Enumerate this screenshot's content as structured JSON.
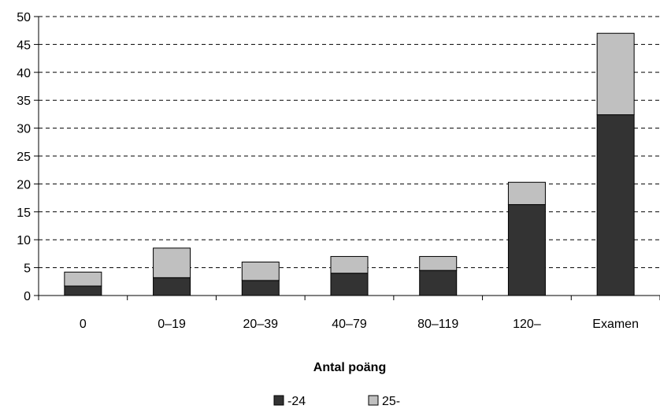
{
  "chart_data": {
    "type": "bar",
    "stacked": true,
    "title": "",
    "xlabel": "Antal poäng",
    "ylabel": "",
    "ylim": [
      0,
      50
    ],
    "yticks": [
      0,
      5,
      10,
      15,
      20,
      25,
      30,
      35,
      40,
      45,
      50
    ],
    "grid": "horizontal dashed",
    "legend_position": "bottom",
    "categories": [
      "0",
      "0–19",
      "20–39",
      "40–79",
      "80–119",
      "120–",
      "Examen"
    ],
    "series": [
      {
        "name": "-24",
        "color": "#333333",
        "values": [
          1.7,
          3.2,
          2.7,
          4.0,
          4.5,
          16.3,
          32.4
        ]
      },
      {
        "name": "25-",
        "color": "#c0c0c0",
        "values": [
          2.5,
          5.3,
          3.3,
          3.0,
          2.5,
          4.0,
          14.6
        ]
      }
    ]
  }
}
